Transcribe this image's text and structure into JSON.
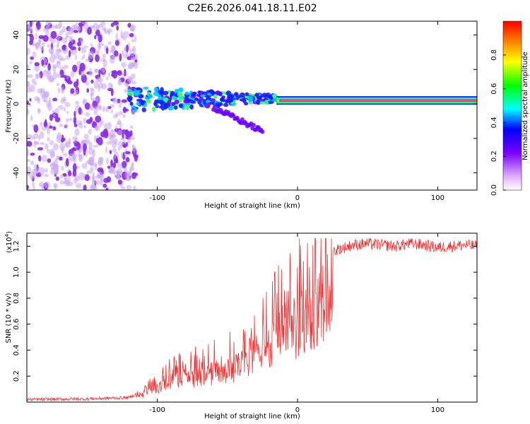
{
  "title": "C2E6.2026.041.18.11.E02",
  "chart_data": [
    {
      "type": "heatmap",
      "title": "C2E6.2026.041.18.11.E02",
      "xlabel": "Height of straight line (km)",
      "ylabel": "Frequency (Hz)",
      "xlim": [
        -193,
        128
      ],
      "ylim": [
        -50,
        48
      ],
      "xticks": [
        -100,
        0,
        100
      ],
      "yticks": [
        -40,
        -20,
        0,
        20,
        40
      ],
      "ytick_labels": [
        "-40",
        "-20",
        "0",
        "20",
        "40"
      ],
      "colorbar": {
        "label": "Normalized spectral amplitude",
        "range": [
          0,
          1
        ],
        "ticks": [
          0.0,
          0.2,
          0.4,
          0.6,
          0.8
        ],
        "tick_labels": [
          "0.0",
          "0.2",
          "0.4",
          "0.6",
          "0.8"
        ]
      },
      "features": {
        "noise_region_x": [
          -193,
          -115
        ],
        "signal_band_center_hz": 2,
        "signal_start_km": -120,
        "strong_band_start_km": -15,
        "drift_branch": {
          "x_start": -60,
          "x_end": -25,
          "f_start": -2,
          "f_end": -16
        }
      }
    },
    {
      "type": "line",
      "xlabel": "Height of straight line (km)",
      "ylabel": "SNR (10 * v/v)",
      "y_multiplier_label": "(x10",
      "y_multiplier_exp": "4",
      "y_multiplier_close": ")",
      "xlim": [
        -193,
        128
      ],
      "ylim": [
        0,
        13000
      ],
      "xticks": [
        -100,
        0,
        100
      ],
      "yticks": [
        2000,
        4000,
        6000,
        8000,
        10000,
        12000
      ],
      "ytick_labels": [
        "0.2",
        "0.4",
        "0.6",
        "0.8",
        "1.0",
        "1.2"
      ],
      "series": [
        {
          "name": "SNR",
          "color": "#ee3333",
          "x": [
            -193,
            -150,
            -120,
            -110,
            -100,
            -90,
            -80,
            -70,
            -60,
            -50,
            -40,
            -30,
            -25,
            -20,
            -15,
            -10,
            -5,
            0,
            5,
            10,
            15,
            20,
            25,
            30,
            40,
            50,
            60,
            70,
            80,
            90,
            100,
            110,
            120,
            128
          ],
          "values": [
            200,
            250,
            350,
            900,
            1500,
            2300,
            2600,
            2900,
            3200,
            3500,
            4000,
            4800,
            5400,
            6000,
            6800,
            7200,
            7500,
            8300,
            8600,
            9200,
            10000,
            11000,
            11600,
            11800,
            12100,
            12200,
            12100,
            12000,
            12200,
            12100,
            11900,
            12000,
            12100,
            12000
          ]
        }
      ]
    }
  ]
}
